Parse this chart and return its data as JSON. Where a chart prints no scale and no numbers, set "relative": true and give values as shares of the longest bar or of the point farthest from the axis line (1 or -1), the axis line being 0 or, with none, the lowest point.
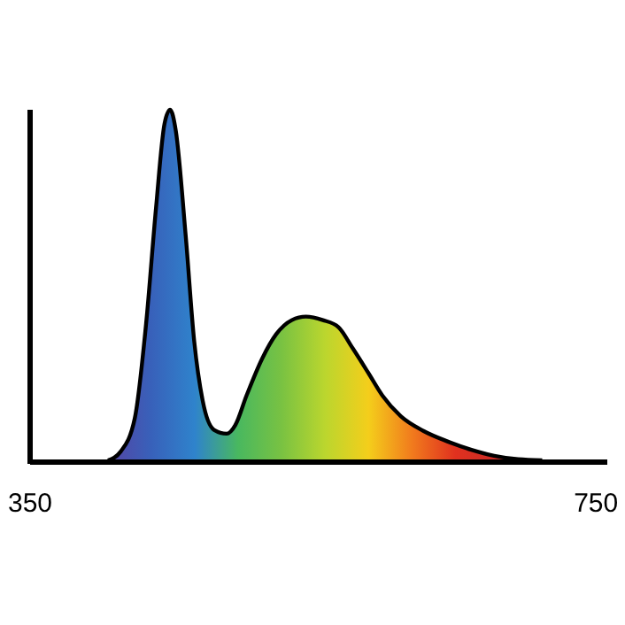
{
  "chart_data": {
    "type": "area",
    "relative": true,
    "xlim": [
      350,
      758
    ],
    "xticks": [
      350,
      750
    ],
    "grid": false,
    "series": [
      {
        "color": "#000000",
        "x": [
          405,
          414,
          424,
          432,
          439,
          445,
          449,
          453,
          460,
          466,
          472,
          480,
          489,
          495,
          503,
          514,
          524,
          535,
          545,
          557,
          568,
          578,
          589,
          599,
          612,
          628,
          645,
          662,
          678,
          695,
          712
        ],
        "values": [
          0,
          0.025,
          0.12,
          0.39,
          0.72,
          0.96,
          1.0,
          0.94,
          0.64,
          0.34,
          0.17,
          0.087,
          0.076,
          0.1,
          0.185,
          0.29,
          0.36,
          0.4,
          0.41,
          0.4,
          0.38,
          0.32,
          0.25,
          0.185,
          0.126,
          0.084,
          0.054,
          0.03,
          0.013,
          0.003,
          0
        ]
      }
    ]
  }
}
